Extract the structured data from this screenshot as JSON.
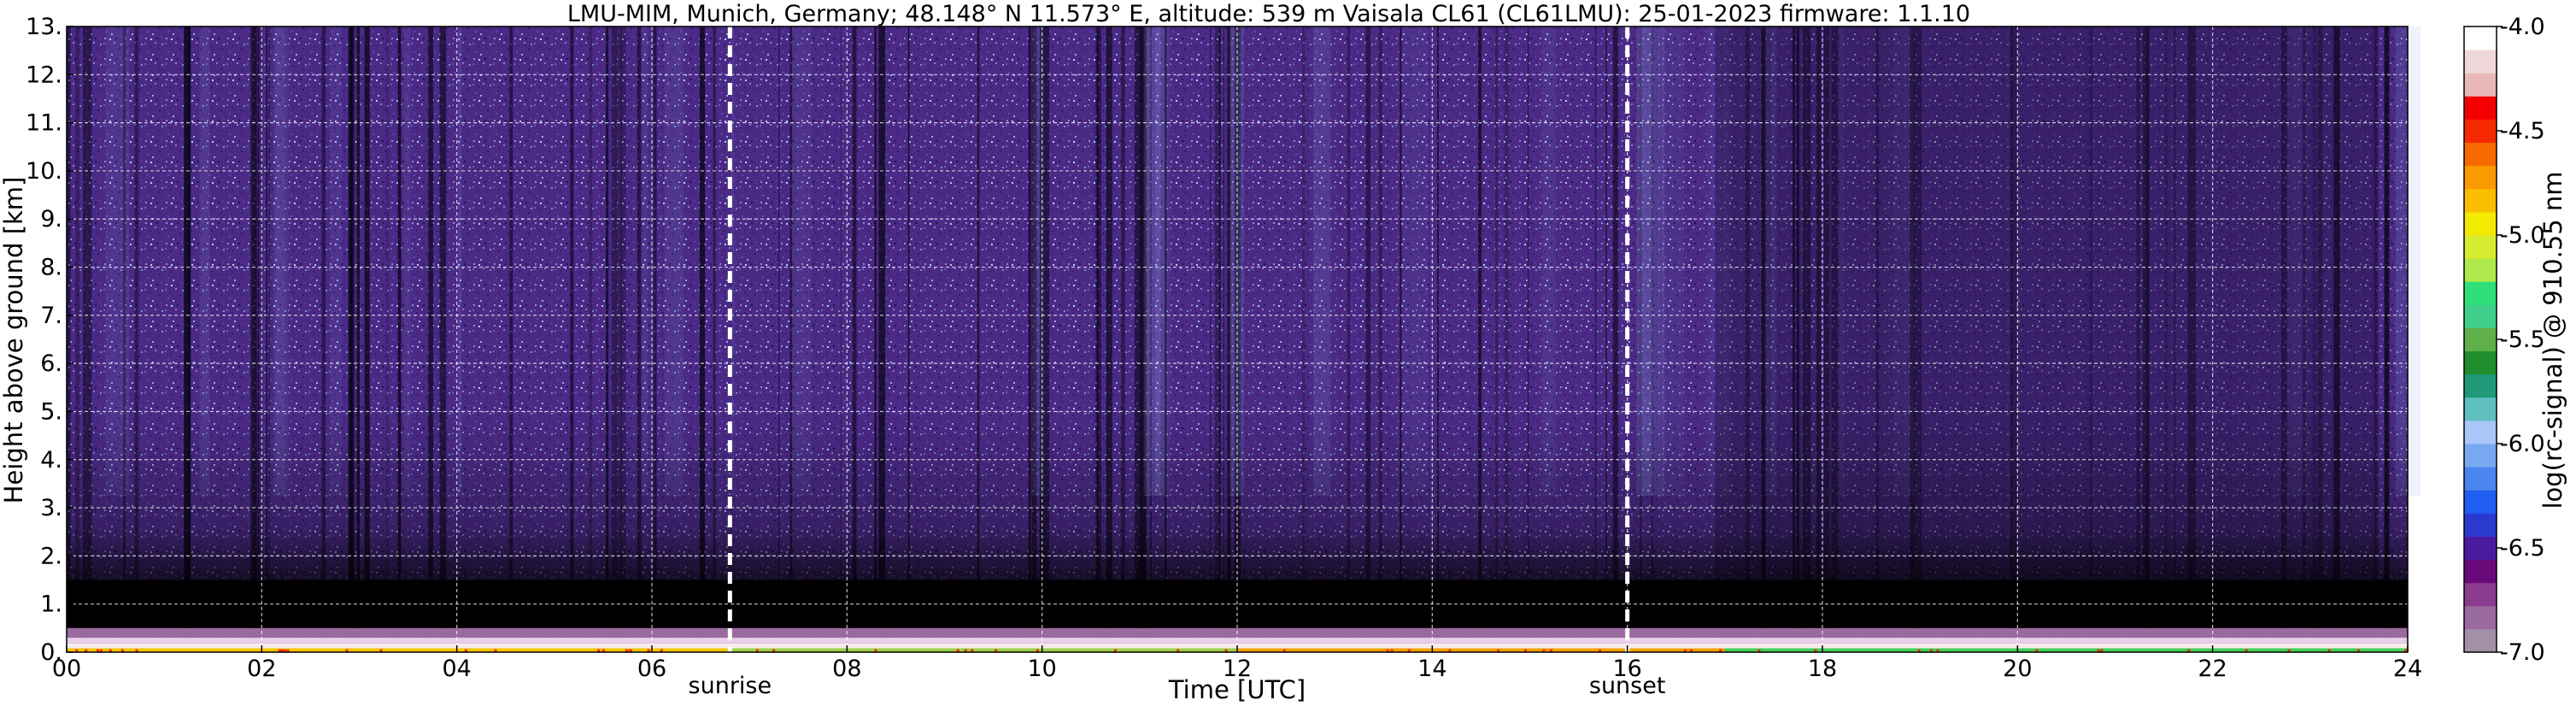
{
  "chart_data": {
    "type": "heatmap",
    "title": "LMU-MIM, Munich, Germany; 48.148° N 11.573° E, altitude: 539 m    Vaisala CL61 (CL61LMU): 25-01-2023    firmware: 1.1.10",
    "xlabel": "Time [UTC]",
    "ylabel": "Height above ground [km]",
    "xlim": [
      0,
      24
    ],
    "ylim": [
      0,
      13
    ],
    "x_ticks": [
      0,
      2,
      4,
      6,
      8,
      10,
      12,
      14,
      16,
      18,
      20,
      22,
      24
    ],
    "x_tick_labels": [
      "00",
      "02",
      "04",
      "06",
      "08",
      "10",
      "12",
      "14",
      "16",
      "18",
      "20",
      "22",
      "24"
    ],
    "y_ticks": [
      0,
      1,
      2,
      3,
      4,
      5,
      6,
      7,
      8,
      9,
      10,
      11,
      12,
      13
    ],
    "y_tick_labels": [
      "0.",
      "1.",
      "2.",
      "3.",
      "4.",
      "5.",
      "6.",
      "7.",
      "8.",
      "9.",
      "10.",
      "11.",
      "12.",
      "13."
    ],
    "grid": true,
    "vertical_markers": [
      {
        "x": 6.8,
        "label": "sunrise"
      },
      {
        "x": 16.0,
        "label": "sunset"
      }
    ],
    "colorbar": {
      "label": "log(rc-signal) @ 910.55 nm",
      "range": [
        -7.0,
        -4.0
      ],
      "ticks": [
        -4.0,
        -4.5,
        -5.0,
        -5.5,
        -6.0,
        -6.5,
        -7.0
      ],
      "tick_labels": [
        "-4.0",
        "-4.5",
        "-5.0",
        "-5.5",
        "-6.0",
        "-6.5",
        "-7.0"
      ],
      "colors": [
        "#a290a8",
        "#9a6a9e",
        "#8a3d8e",
        "#6a0a7a",
        "#4a1aa0",
        "#2a3acf",
        "#1f5ef0",
        "#4b86f0",
        "#79a8f3",
        "#a8c6f6",
        "#5fc0c0",
        "#1f9a78",
        "#1f8e2e",
        "#5fb04a",
        "#3fcf8a",
        "#2fe07a",
        "#afe84a",
        "#d6ec2f",
        "#f2ea00",
        "#fbbd00",
        "#fb9a00",
        "#f86a00",
        "#f52a00",
        "#f50000",
        "#e8b8b8",
        "#f1d8d8",
        "#ffffff"
      ]
    }
  }
}
